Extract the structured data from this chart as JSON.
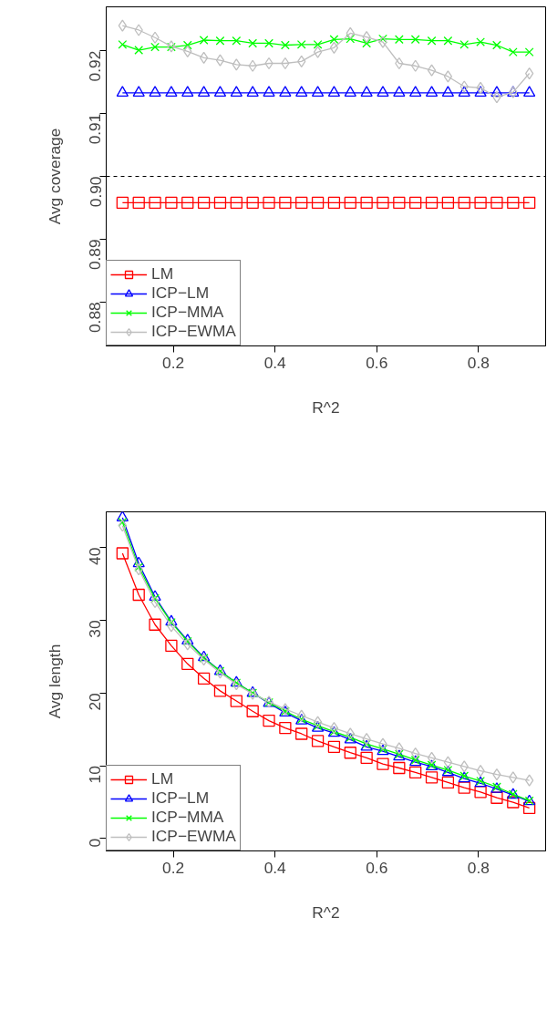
{
  "chart_data": [
    {
      "type": "line",
      "xlabel": "R^2",
      "ylabel": "Avg coverage",
      "x": [
        0.1,
        0.132,
        0.164,
        0.196,
        0.228,
        0.26,
        0.292,
        0.324,
        0.356,
        0.388,
        0.42,
        0.452,
        0.484,
        0.516,
        0.548,
        0.58,
        0.612,
        0.644,
        0.676,
        0.708,
        0.74,
        0.772,
        0.804,
        0.836,
        0.868,
        0.9
      ],
      "xlim": [
        0.068,
        0.932
      ],
      "ylim": [
        0.873,
        0.927
      ],
      "xticks": [
        0.2,
        0.4,
        0.6,
        0.8
      ],
      "yticks": [
        0.88,
        0.89,
        {
          "value": 0.9,
          "label": "0.90"
        },
        0.91,
        0.92
      ],
      "grid": false,
      "legend": "bottom left",
      "ref_lines": [
        {
          "axis": "y",
          "value": 0.9,
          "color": "#000000",
          "line_style": "dashed"
        }
      ],
      "series": [
        {
          "name": "LM",
          "color": "#ff0000",
          "marker": "square",
          "values": [
            0.8958,
            0.8958,
            0.8958,
            0.8958,
            0.8958,
            0.8958,
            0.8958,
            0.8958,
            0.8958,
            0.8958,
            0.8958,
            0.8958,
            0.8958,
            0.8958,
            0.8958,
            0.8958,
            0.8958,
            0.8958,
            0.8958,
            0.8958,
            0.8958,
            0.8958,
            0.8958,
            0.8958,
            0.8958,
            0.8958
          ]
        },
        {
          "name": "ICP−LM",
          "color": "#0000ff",
          "marker": "triangle",
          "values": [
            0.9133,
            0.9133,
            0.9133,
            0.9133,
            0.9133,
            0.9133,
            0.9133,
            0.9133,
            0.9133,
            0.9133,
            0.9133,
            0.9133,
            0.9133,
            0.9133,
            0.9133,
            0.9133,
            0.9133,
            0.9133,
            0.9133,
            0.9133,
            0.9133,
            0.9133,
            0.9133,
            0.9133,
            0.9133,
            0.9133
          ]
        },
        {
          "name": "ICP−MMA",
          "color": "#00ff00",
          "marker": "cross",
          "values": [
            0.921,
            0.9201,
            0.9206,
            0.9206,
            0.9209,
            0.9217,
            0.9216,
            0.9216,
            0.9212,
            0.9212,
            0.9209,
            0.921,
            0.921,
            0.9218,
            0.9219,
            0.9212,
            0.9219,
            0.9218,
            0.9218,
            0.9216,
            0.9216,
            0.921,
            0.9214,
            0.9209,
            0.9198,
            0.9198
          ]
        },
        {
          "name": "ICP−EWMA",
          "color": "#bebebe",
          "marker": "diamond",
          "values": [
            0.924,
            0.9233,
            0.9221,
            0.9207,
            0.9199,
            0.9189,
            0.9185,
            0.9178,
            0.9176,
            0.918,
            0.918,
            0.9183,
            0.9198,
            0.9205,
            0.9228,
            0.9222,
            0.9214,
            0.918,
            0.9176,
            0.9169,
            0.9159,
            0.9143,
            0.9141,
            0.9126,
            0.9134,
            0.9164
          ]
        }
      ]
    },
    {
      "type": "line",
      "xlabel": "R^2",
      "ylabel": "Avg length",
      "x": [
        0.1,
        0.132,
        0.164,
        0.196,
        0.228,
        0.26,
        0.292,
        0.324,
        0.356,
        0.388,
        0.42,
        0.452,
        0.484,
        0.516,
        0.548,
        0.58,
        0.612,
        0.644,
        0.676,
        0.708,
        0.74,
        0.772,
        0.804,
        0.836,
        0.868,
        0.9
      ],
      "xlim": [
        0.068,
        0.932
      ],
      "ylim": [
        -1.7,
        44.9
      ],
      "xticks": [
        0.2,
        0.4,
        0.6,
        0.8
      ],
      "yticks": [
        0,
        10,
        20,
        30,
        40
      ],
      "grid": false,
      "legend": "bottom left",
      "series": [
        {
          "name": "LM",
          "color": "#ff0000",
          "marker": "square",
          "values": [
            39.2,
            33.5,
            29.4,
            26.5,
            24.0,
            22.0,
            20.3,
            18.9,
            17.5,
            16.2,
            15.2,
            14.4,
            13.4,
            12.6,
            11.8,
            11.1,
            10.25,
            9.7,
            9.1,
            8.4,
            7.7,
            7.0,
            6.4,
            5.6,
            5.0,
            4.2
          ]
        },
        {
          "name": "ICP−LM",
          "color": "#0000ff",
          "marker": "triangle",
          "values": [
            44.1,
            37.8,
            33.2,
            29.8,
            27.2,
            24.9,
            23.0,
            21.4,
            20.0,
            18.6,
            17.3,
            16.2,
            15.2,
            14.5,
            13.6,
            12.6,
            12.0,
            11.25,
            10.5,
            9.9,
            9.1,
            8.25,
            7.6,
            6.8,
            6.0,
            5.1
          ]
        },
        {
          "name": "ICP−MMA",
          "color": "#00ff00",
          "marker": "cross",
          "values": [
            43.5,
            37.3,
            33.0,
            29.7,
            27.1,
            24.8,
            23.0,
            21.4,
            20.0,
            18.7,
            17.5,
            16.4,
            15.5,
            14.7,
            13.9,
            13.0,
            12.3,
            11.6,
            10.8,
            10.1,
            9.4,
            8.6,
            7.9,
            7.1,
            6.1,
            5.2
          ]
        },
        {
          "name": "ICP−EWMA",
          "color": "#bebebe",
          "marker": "diamond",
          "values": [
            43.0,
            37.0,
            32.5,
            29.2,
            26.7,
            24.6,
            22.8,
            21.2,
            19.9,
            18.8,
            17.8,
            16.9,
            16.0,
            15.2,
            14.4,
            13.7,
            13.0,
            12.4,
            11.7,
            11.1,
            10.5,
            9.9,
            9.3,
            8.8,
            8.4,
            8.0
          ]
        }
      ]
    }
  ]
}
